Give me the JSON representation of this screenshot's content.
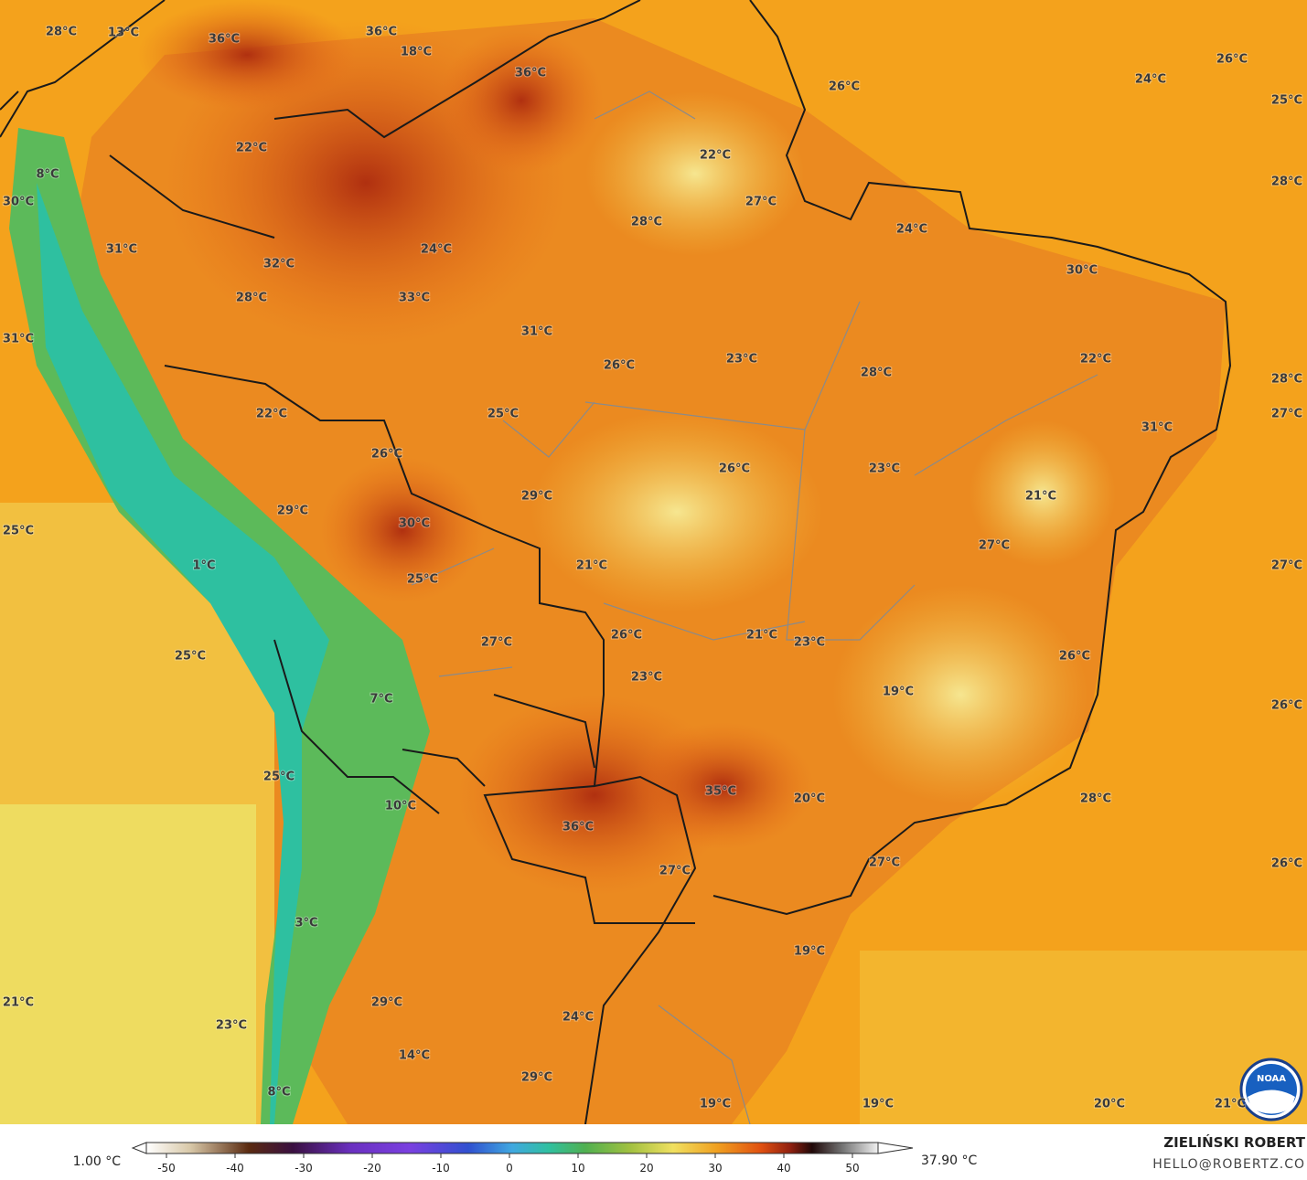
{
  "map": {
    "labels": [
      "28°C",
      "13°C",
      "36°C",
      "36°C",
      "18°C",
      "36°C",
      "26°C",
      "24°C",
      "26°C",
      "25°C",
      "22°C",
      "22°C",
      "8°C",
      "30°C",
      "27°C",
      "28°C",
      "28°C",
      "24°C",
      "31°C",
      "24°C",
      "32°C",
      "30°C",
      "28°C",
      "33°C",
      "31°C",
      "31°C",
      "23°C",
      "22°C",
      "26°C",
      "28°C",
      "28°C",
      "22°C",
      "25°C",
      "27°C",
      "31°C",
      "26°C",
      "26°C",
      "23°C",
      "21°C",
      "29°C",
      "29°C",
      "30°C",
      "25°C",
      "27°C",
      "21°C",
      "27°C",
      "1°C",
      "25°C",
      "26°C",
      "21°C",
      "23°C",
      "27°C",
      "25°C",
      "26°C",
      "23°C",
      "19°C",
      "7°C",
      "26°C",
      "25°C",
      "35°C",
      "20°C",
      "28°C",
      "10°C",
      "36°C",
      "27°C",
      "26°C",
      "27°C",
      "3°C",
      "19°C",
      "21°C",
      "29°C",
      "24°C",
      "23°C",
      "14°C",
      "29°C",
      "8°C",
      "19°C",
      "19°C",
      "20°C",
      "21°C"
    ],
    "colorbar": {
      "ticks": [
        -50,
        -40,
        -30,
        -20,
        -10,
        0,
        10,
        20,
        30,
        40,
        50
      ],
      "min_label": "1.00 °C",
      "max_label": "37.90 °C"
    },
    "credit": {
      "author": "ZIELIŃSKI ROBERT",
      "email": "HELLO@ROBERTZ.CO"
    }
  }
}
